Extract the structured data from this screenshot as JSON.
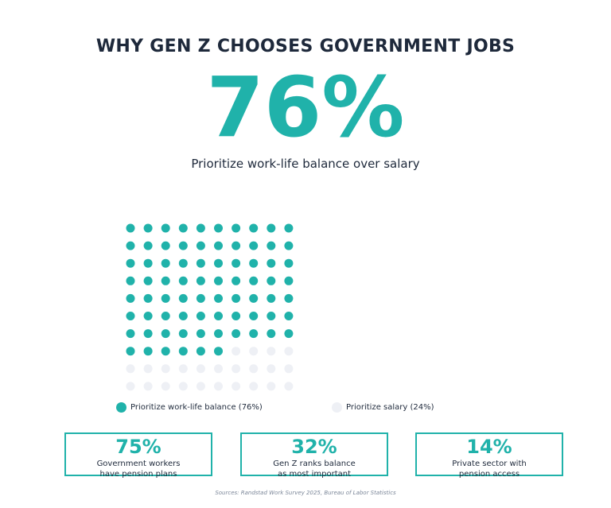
{
  "title": "WHY GEN Z CHOOSES GOVERNMENT JOBS",
  "hero": {
    "value": "76%",
    "caption": "Prioritize work-life balance over salary"
  },
  "chart_data": {
    "type": "waffle",
    "rows": 10,
    "columns": 10,
    "categories": [
      "Prioritize work-life balance (76%)",
      "Prioritize salary (24%)"
    ],
    "values": [
      76,
      24
    ],
    "colors": [
      "#20b2aa",
      "#eef0f5"
    ]
  },
  "legend": [
    {
      "label": "Prioritize work-life balance (76%)",
      "color": "#20b2aa"
    },
    {
      "label": "Prioritize salary (24%)",
      "color": "#eef0f5"
    }
  ],
  "stats": [
    {
      "value": "75%",
      "label": "Government workers\nhave pension plans"
    },
    {
      "value": "32%",
      "label": "Gen Z ranks balance\nas most important"
    },
    {
      "value": "14%",
      "label": "Private sector with\npension access"
    }
  ],
  "sources": "Sources: Randstad Work Survey 2025, Bureau of Labor Statistics",
  "colors": {
    "accent": "#20b2aa",
    "text": "#1e293b",
    "muted_dot": "#eef0f5"
  }
}
